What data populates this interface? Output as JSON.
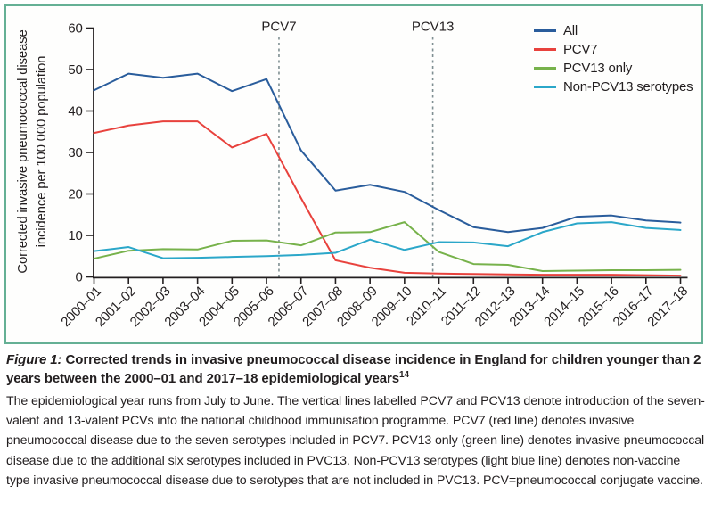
{
  "colors": {
    "panel_border": "#65b095",
    "axis": "#231f20",
    "dashed_line": "#7f8f92",
    "text": "#231f20"
  },
  "figure": {
    "y_axis_title_line1": "Corrected invasive pneumococcal disease",
    "y_axis_title_line2": "incidence per 100 000 population"
  },
  "chart_data": {
    "type": "line",
    "title": "",
    "xlabel": "",
    "ylabel": "Corrected invasive pneumococcal disease incidence per 100 000 population",
    "ylim": [
      0,
      60
    ],
    "yticks": [
      0,
      10,
      20,
      30,
      40,
      50,
      60
    ],
    "grid": false,
    "legend_position": "top-right",
    "categories": [
      "2000–01",
      "2001–02",
      "2002–03",
      "2003–04",
      "2004–05",
      "2005–06",
      "2006–07",
      "2007–08",
      "2008–09",
      "2009–10",
      "2010–11",
      "2011–12",
      "2012–13",
      "2013–14",
      "2014–15",
      "2015–16",
      "2016–17",
      "2017–18"
    ],
    "series": [
      {
        "name": "All",
        "color": "#2a5d9c",
        "values": [
          45.0,
          49.0,
          48.0,
          49.0,
          44.8,
          47.7,
          30.5,
          20.8,
          22.2,
          20.5,
          16.1,
          12.0,
          10.8,
          11.8,
          14.5,
          14.8,
          13.6,
          13.1
        ]
      },
      {
        "name": "PCV7",
        "color": "#e8423d",
        "values": [
          34.7,
          36.5,
          37.5,
          37.5,
          31.2,
          34.5,
          19.0,
          4.0,
          2.2,
          1.0,
          0.8,
          0.7,
          0.6,
          0.5,
          0.5,
          0.5,
          0.4,
          0.3
        ]
      },
      {
        "name": "PCV13 only",
        "color": "#77b24b",
        "values": [
          4.4,
          6.3,
          6.7,
          6.6,
          8.7,
          8.8,
          7.6,
          10.7,
          10.8,
          13.2,
          6.0,
          3.1,
          2.9,
          1.4,
          1.5,
          1.6,
          1.6,
          1.7
        ]
      },
      {
        "name": "Non-PCV13 serotypes",
        "color": "#2ba7c9",
        "values": [
          6.2,
          7.2,
          4.5,
          4.6,
          4.8,
          5.0,
          5.3,
          5.8,
          9.0,
          6.5,
          8.4,
          8.3,
          7.4,
          10.8,
          12.9,
          13.2,
          11.8,
          11.3
        ]
      }
    ],
    "annotations": {
      "vlines": [
        {
          "label": "PCV7",
          "x_index": 5.36
        },
        {
          "label": "PCV13",
          "x_index": 9.82
        }
      ]
    }
  },
  "caption": {
    "figure_label": "Figure 1:",
    "title": "Corrected trends in invasive pneumococcal disease incidence in England for children younger than 2 years between the 2000–01 and 2017–18 epidemiological years",
    "title_ref": "14",
    "body": "The epidemiological year runs from July to June. The vertical lines labelled PCV7 and PCV13 denote introduction of the seven-valent and 13-valent PCVs into the national childhood immunisation programme. PCV7 (red line) denotes invasive pneumococcal disease due to the seven serotypes included in PCV7. PCV13 only (green line) denotes invasive pneumococcal disease due to the additional six serotypes included in PVC13. Non-PCV13 serotypes (light blue line) denotes non-vaccine type invasive pneumococcal disease due to serotypes that are not included in PVC13. PCV=pneumococcal conjugate vaccine."
  }
}
